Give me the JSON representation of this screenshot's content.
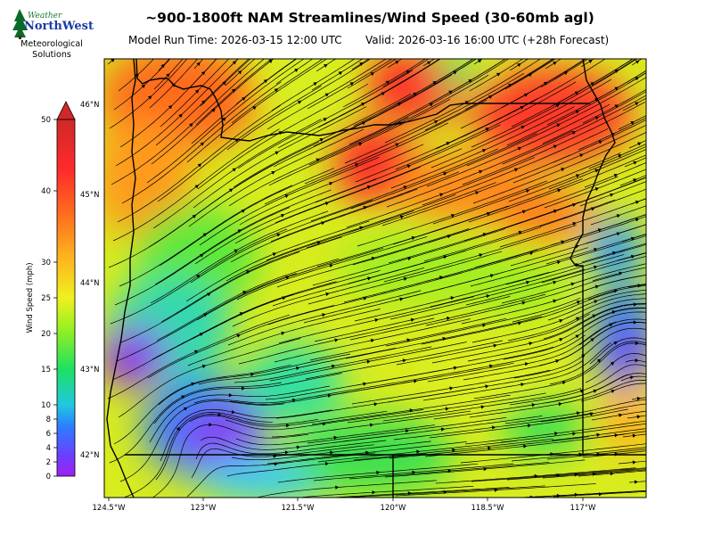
{
  "header": {
    "title": "~900-1800ft NAM Streamlines/Wind Speed (30-60mb agl)",
    "run_time": "Model Run Time: 2026-03-15 12:00 UTC",
    "valid_time": "Valid: 2026-03-16 16:00 UTC  (+28h Forecast)"
  },
  "logo": {
    "word_small": "Weather",
    "word_brand": "NorthWest",
    "sub_line1": "Meteorological",
    "sub_line2": "Solutions"
  },
  "colorbar": {
    "label": "Wind Speed (mph)",
    "ticks": [
      "0",
      "2",
      "4",
      "6",
      "8",
      "10",
      "15",
      "20",
      "25",
      "30",
      "40",
      "50"
    ],
    "tick_values": [
      0,
      2,
      4,
      6,
      8,
      10,
      15,
      20,
      25,
      30,
      40,
      50
    ]
  },
  "axes": {
    "lon_labels": [
      "124.5°W",
      "123°W",
      "121.5°W",
      "120°W",
      "118.5°W",
      "117°W"
    ],
    "lat_labels": [
      "46°N",
      "45°N",
      "44°N",
      "43°N",
      "42°N"
    ]
  },
  "colors": {
    "calm": "#9a1ef0",
    "light": "#2a7fff",
    "moderate": "#1ee060",
    "fresh": "#f0f020",
    "strong": "#ff8a1e",
    "gale": "#f02828",
    "streamline": "#000000"
  }
}
